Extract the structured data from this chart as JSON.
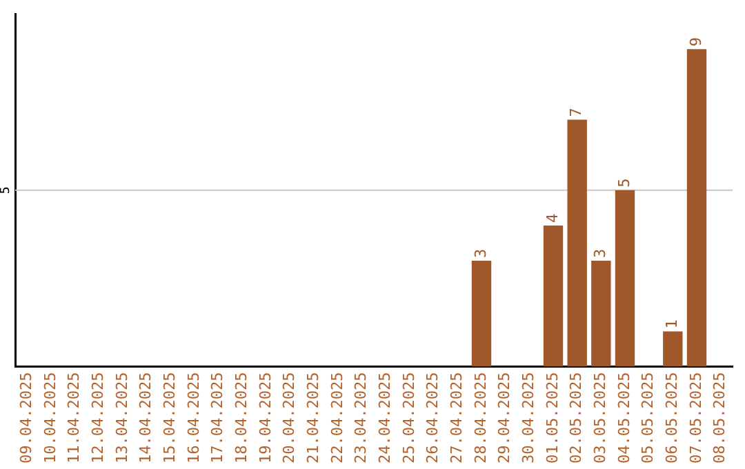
{
  "chart_data": {
    "type": "bar",
    "categories": [
      "09.04.2025",
      "10.04.2025",
      "11.04.2025",
      "12.04.2025",
      "13.04.2025",
      "14.04.2025",
      "15.04.2025",
      "16.04.2025",
      "17.04.2025",
      "18.04.2025",
      "19.04.2025",
      "20.04.2025",
      "21.04.2025",
      "22.04.2025",
      "23.04.2025",
      "24.04.2025",
      "25.04.2025",
      "26.04.2025",
      "27.04.2025",
      "28.04.2025",
      "29.04.2025",
      "30.04.2025",
      "01.05.2025",
      "02.05.2025",
      "03.05.2025",
      "04.05.2025",
      "05.05.2025",
      "06.05.2025",
      "07.05.2025",
      "08.05.2025"
    ],
    "values": [
      null,
      null,
      null,
      null,
      null,
      null,
      null,
      null,
      null,
      null,
      null,
      null,
      null,
      null,
      null,
      null,
      null,
      null,
      null,
      3,
      null,
      null,
      4,
      7,
      3,
      5,
      null,
      1,
      9,
      null
    ],
    "value_labels": [
      null,
      null,
      null,
      null,
      null,
      null,
      null,
      null,
      null,
      null,
      null,
      null,
      null,
      null,
      null,
      null,
      null,
      null,
      null,
      "3",
      null,
      null,
      "4",
      "7",
      "3",
      "5",
      null,
      "1",
      "9",
      null
    ],
    "color": "#a0572a",
    "ref_lines": [
      {
        "axis": "y",
        "value": 5,
        "label": "5",
        "color": "#c8c8c8"
      }
    ],
    "legend": false
  }
}
